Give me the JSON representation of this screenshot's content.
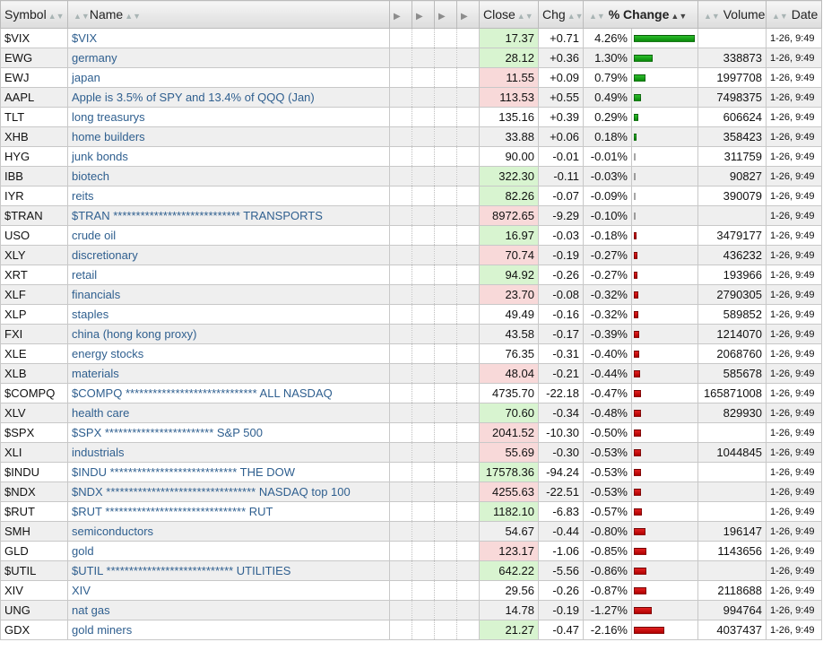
{
  "columns": {
    "symbol": "Symbol",
    "name": "Name",
    "close": "Close",
    "chg": "Chg",
    "pct_change": "% Change",
    "volume": "Volume",
    "date": "Date"
  },
  "bar_scale_max_pct": 4.26,
  "colors": {
    "up": "#d8f4d0",
    "down": "#f8d9d9",
    "bar_positive": "#1aa51a",
    "bar_negative": "#cc0000",
    "link": "#2f5f8f"
  },
  "rows": [
    {
      "symbol": "$VIX",
      "name": "$VIX",
      "close": "17.37",
      "chg": "+0.71",
      "pct": "4.26%",
      "pct_value": 4.26,
      "volume": "",
      "date": "1-26, 9:49",
      "close_dir": "up"
    },
    {
      "symbol": "EWG",
      "name": "germany",
      "close": "28.12",
      "chg": "+0.36",
      "pct": "1.30%",
      "pct_value": 1.3,
      "volume": "338873",
      "date": "1-26, 9:49",
      "close_dir": "up"
    },
    {
      "symbol": "EWJ",
      "name": "japan",
      "close": "11.55",
      "chg": "+0.09",
      "pct": "0.79%",
      "pct_value": 0.79,
      "volume": "1997708",
      "date": "1-26, 9:49",
      "close_dir": "down"
    },
    {
      "symbol": "AAPL",
      "name": "Apple is 3.5% of SPY and 13.4% of QQQ (Jan)",
      "close": "113.53",
      "chg": "+0.55",
      "pct": "0.49%",
      "pct_value": 0.49,
      "volume": "7498375",
      "date": "1-26, 9:49",
      "close_dir": "down"
    },
    {
      "symbol": "TLT",
      "name": "long treasurys",
      "close": "135.16",
      "chg": "+0.39",
      "pct": "0.29%",
      "pct_value": 0.29,
      "volume": "606624",
      "date": "1-26, 9:49",
      "close_dir": "none"
    },
    {
      "symbol": "XHB",
      "name": "home builders",
      "close": "33.88",
      "chg": "+0.06",
      "pct": "0.18%",
      "pct_value": 0.18,
      "volume": "358423",
      "date": "1-26, 9:49",
      "close_dir": "none"
    },
    {
      "symbol": "HYG",
      "name": "junk bonds",
      "close": "90.00",
      "chg": "-0.01",
      "pct": "-0.01%",
      "pct_value": -0.01,
      "volume": "311759",
      "date": "1-26, 9:49",
      "close_dir": "none"
    },
    {
      "symbol": "IBB",
      "name": "biotech",
      "close": "322.30",
      "chg": "-0.11",
      "pct": "-0.03%",
      "pct_value": -0.03,
      "volume": "90827",
      "date": "1-26, 9:49",
      "close_dir": "up"
    },
    {
      "symbol": "IYR",
      "name": "reits",
      "close": "82.26",
      "chg": "-0.07",
      "pct": "-0.09%",
      "pct_value": -0.09,
      "volume": "390079",
      "date": "1-26, 9:49",
      "close_dir": "up"
    },
    {
      "symbol": "$TRAN",
      "name": "$TRAN **************************** TRANSPORTS",
      "close": "8972.65",
      "chg": "-9.29",
      "pct": "-0.10%",
      "pct_value": -0.1,
      "volume": "",
      "date": "1-26, 9:49",
      "close_dir": "down"
    },
    {
      "symbol": "USO",
      "name": "crude oil",
      "close": "16.97",
      "chg": "-0.03",
      "pct": "-0.18%",
      "pct_value": -0.18,
      "volume": "3479177",
      "date": "1-26, 9:49",
      "close_dir": "up"
    },
    {
      "symbol": "XLY",
      "name": "discretionary",
      "close": "70.74",
      "chg": "-0.19",
      "pct": "-0.27%",
      "pct_value": -0.27,
      "volume": "436232",
      "date": "1-26, 9:49",
      "close_dir": "down"
    },
    {
      "symbol": "XRT",
      "name": "retail",
      "close": "94.92",
      "chg": "-0.26",
      "pct": "-0.27%",
      "pct_value": -0.27,
      "volume": "193966",
      "date": "1-26, 9:49",
      "close_dir": "up"
    },
    {
      "symbol": "XLF",
      "name": "financials",
      "close": "23.70",
      "chg": "-0.08",
      "pct": "-0.32%",
      "pct_value": -0.32,
      "volume": "2790305",
      "date": "1-26, 9:49",
      "close_dir": "down"
    },
    {
      "symbol": "XLP",
      "name": "staples",
      "close": "49.49",
      "chg": "-0.16",
      "pct": "-0.32%",
      "pct_value": -0.32,
      "volume": "589852",
      "date": "1-26, 9:49",
      "close_dir": "none"
    },
    {
      "symbol": "FXI",
      "name": "china (hong kong proxy)",
      "close": "43.58",
      "chg": "-0.17",
      "pct": "-0.39%",
      "pct_value": -0.39,
      "volume": "1214070",
      "date": "1-26, 9:49",
      "close_dir": "none"
    },
    {
      "symbol": "XLE",
      "name": "energy stocks",
      "close": "76.35",
      "chg": "-0.31",
      "pct": "-0.40%",
      "pct_value": -0.4,
      "volume": "2068760",
      "date": "1-26, 9:49",
      "close_dir": "none"
    },
    {
      "symbol": "XLB",
      "name": "materials",
      "close": "48.04",
      "chg": "-0.21",
      "pct": "-0.44%",
      "pct_value": -0.44,
      "volume": "585678",
      "date": "1-26, 9:49",
      "close_dir": "down"
    },
    {
      "symbol": "$COMPQ",
      "name": "$COMPQ ***************************** ALL NASDAQ",
      "close": "4735.70",
      "chg": "-22.18",
      "pct": "-0.47%",
      "pct_value": -0.47,
      "volume": "165871008",
      "date": "1-26, 9:49",
      "close_dir": "none"
    },
    {
      "symbol": "XLV",
      "name": "health care",
      "close": "70.60",
      "chg": "-0.34",
      "pct": "-0.48%",
      "pct_value": -0.48,
      "volume": "829930",
      "date": "1-26, 9:49",
      "close_dir": "up"
    },
    {
      "symbol": "$SPX",
      "name": "$SPX ************************ S&P 500",
      "close": "2041.52",
      "chg": "-10.30",
      "pct": "-0.50%",
      "pct_value": -0.5,
      "volume": "",
      "date": "1-26, 9:49",
      "close_dir": "down"
    },
    {
      "symbol": "XLI",
      "name": "industrials",
      "close": "55.69",
      "chg": "-0.30",
      "pct": "-0.53%",
      "pct_value": -0.53,
      "volume": "1044845",
      "date": "1-26, 9:49",
      "close_dir": "down"
    },
    {
      "symbol": "$INDU",
      "name": "$INDU **************************** THE DOW",
      "close": "17578.36",
      "chg": "-94.24",
      "pct": "-0.53%",
      "pct_value": -0.53,
      "volume": "",
      "date": "1-26, 9:49",
      "close_dir": "up"
    },
    {
      "symbol": "$NDX",
      "name": "$NDX ********************************* NASDAQ top 100",
      "close": "4255.63",
      "chg": "-22.51",
      "pct": "-0.53%",
      "pct_value": -0.53,
      "volume": "",
      "date": "1-26, 9:49",
      "close_dir": "down"
    },
    {
      "symbol": "$RUT",
      "name": "$RUT ******************************* RUT",
      "close": "1182.10",
      "chg": "-6.83",
      "pct": "-0.57%",
      "pct_value": -0.57,
      "volume": "",
      "date": "1-26, 9:49",
      "close_dir": "up"
    },
    {
      "symbol": "SMH",
      "name": "semiconductors",
      "close": "54.67",
      "chg": "-0.44",
      "pct": "-0.80%",
      "pct_value": -0.8,
      "volume": "196147",
      "date": "1-26, 9:49",
      "close_dir": "none"
    },
    {
      "symbol": "GLD",
      "name": "gold",
      "close": "123.17",
      "chg": "-1.06",
      "pct": "-0.85%",
      "pct_value": -0.85,
      "volume": "1143656",
      "date": "1-26, 9:49",
      "close_dir": "down"
    },
    {
      "symbol": "$UTIL",
      "name": "$UTIL **************************** UTILITIES",
      "close": "642.22",
      "chg": "-5.56",
      "pct": "-0.86%",
      "pct_value": -0.86,
      "volume": "",
      "date": "1-26, 9:49",
      "close_dir": "up"
    },
    {
      "symbol": "XIV",
      "name": "XIV",
      "close": "29.56",
      "chg": "-0.26",
      "pct": "-0.87%",
      "pct_value": -0.87,
      "volume": "2118688",
      "date": "1-26, 9:49",
      "close_dir": "none"
    },
    {
      "symbol": "UNG",
      "name": "nat gas",
      "close": "14.78",
      "chg": "-0.19",
      "pct": "-1.27%",
      "pct_value": -1.27,
      "volume": "994764",
      "date": "1-26, 9:49",
      "close_dir": "none"
    },
    {
      "symbol": "GDX",
      "name": "gold miners",
      "close": "21.27",
      "chg": "-0.47",
      "pct": "-2.16%",
      "pct_value": -2.16,
      "volume": "4037437",
      "date": "1-26, 9:49",
      "close_dir": "up"
    }
  ]
}
